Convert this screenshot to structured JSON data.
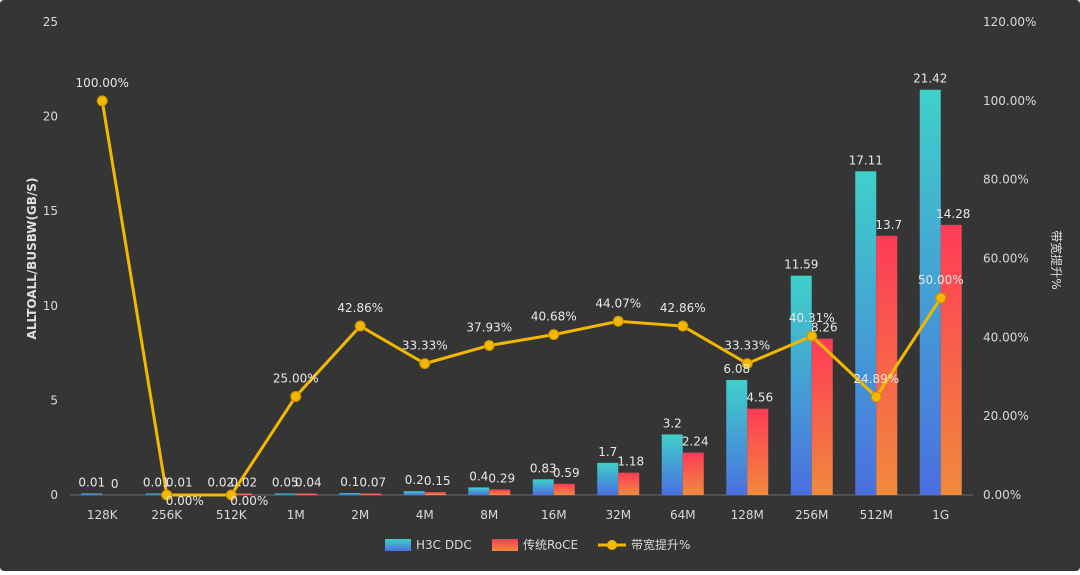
{
  "colors": {
    "background": "#353535",
    "series1_top": "#3fd0c9",
    "series1_bottom": "#4a6fe0",
    "series2_top": "#ff3b57",
    "series2_bottom": "#f08a3c",
    "line": "#f2b800"
  },
  "chart_data": {
    "type": "bar",
    "categories": [
      "128K",
      "256K",
      "512K",
      "1M",
      "2M",
      "4M",
      "8M",
      "16M",
      "32M",
      "64M",
      "128M",
      "256M",
      "512M",
      "1G"
    ],
    "series": [
      {
        "name": "H3C DDC",
        "axis": "left",
        "type": "bar",
        "values": [
          0.01,
          0.01,
          0.02,
          0.05,
          0.1,
          0.2,
          0.4,
          0.83,
          1.7,
          3.2,
          6.08,
          11.59,
          17.11,
          21.42
        ],
        "labels": [
          "0.01",
          "0.01",
          "0.02",
          "0.05",
          "0.1",
          "0.2",
          "0.4",
          "0.83",
          "1.7",
          "3.2",
          "6.08",
          "11.59",
          "17.11",
          "21.42"
        ]
      },
      {
        "name": "传统RoCE",
        "axis": "left",
        "type": "bar",
        "values": [
          0,
          0.01,
          0.02,
          0.04,
          0.07,
          0.15,
          0.29,
          0.59,
          1.18,
          2.24,
          4.56,
          8.26,
          13.7,
          14.28
        ],
        "labels": [
          "0",
          "0.01",
          "0.02",
          "0.04",
          "0.07",
          "0.15",
          "0.29",
          "0.59",
          "1.18",
          "2.24",
          "4.56",
          "8.26",
          "13.7",
          "14.28"
        ]
      },
      {
        "name": "带宽提升%",
        "axis": "right",
        "type": "line",
        "values": [
          100.0,
          0.0,
          0.0,
          25.0,
          42.86,
          33.33,
          37.93,
          40.68,
          44.07,
          42.86,
          33.33,
          40.31,
          24.89,
          50.0
        ],
        "labels": [
          "100.00%",
          "0.00%",
          "0.00%",
          "25.00%",
          "42.86%",
          "33.33%",
          "37.93%",
          "40.68%",
          "44.07%",
          "42.86%",
          "33.33%",
          "40.31%",
          "24.89%",
          "50.00%"
        ]
      }
    ],
    "ylabel": "ALLTOALL/BUSBW(GB/S)",
    "y2label": "带宽提升%",
    "ylim": [
      0,
      25
    ],
    "y_ticks": [
      "0",
      "5",
      "10",
      "15",
      "20",
      "25"
    ],
    "y2lim": [
      0,
      120
    ],
    "y2_ticks": [
      "0.00%",
      "20.00%",
      "40.00%",
      "60.00%",
      "80.00%",
      "100.00%",
      "120.00%"
    ],
    "grid": false,
    "legend": "bottom"
  }
}
